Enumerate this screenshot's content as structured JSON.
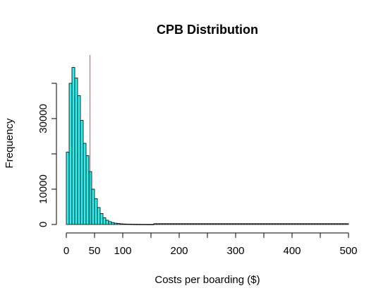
{
  "chart_data": {
    "type": "bar",
    "title": "CPB Distribution",
    "xlabel": "Costs per boarding ($)",
    "ylabel": "Frequency",
    "bin_width": 5,
    "bin_starts": [
      0,
      5,
      10,
      15,
      20,
      25,
      30,
      35,
      40,
      45,
      50,
      55,
      60,
      65,
      70,
      75,
      80,
      85,
      90,
      95,
      100,
      105,
      110,
      115,
      120,
      125,
      130,
      135,
      140,
      145,
      150
    ],
    "values": [
      20500,
      40000,
      44500,
      41500,
      36500,
      29500,
      23000,
      19500,
      15000,
      10000,
      7300,
      4800,
      3100,
      1900,
      1200,
      800,
      550,
      380,
      280,
      200,
      150,
      110,
      90,
      70,
      60,
      50,
      40,
      35,
      30,
      25,
      20
    ],
    "tail_value": 15,
    "tail_range": [
      150,
      500
    ],
    "xlim": [
      -10,
      500
    ],
    "ylim": [
      0,
      45000
    ],
    "x_ticks": [
      0,
      50,
      100,
      200,
      300,
      400,
      500
    ],
    "x_minor_ticks": [
      150,
      250,
      350,
      450
    ],
    "y_ticks": [
      0,
      10000,
      30000
    ],
    "y_minor_ticks": [
      20000,
      40000
    ],
    "reference_line": {
      "x": 42
    },
    "bar_color": "#33EEEE",
    "line_color": "#E0455A"
  }
}
